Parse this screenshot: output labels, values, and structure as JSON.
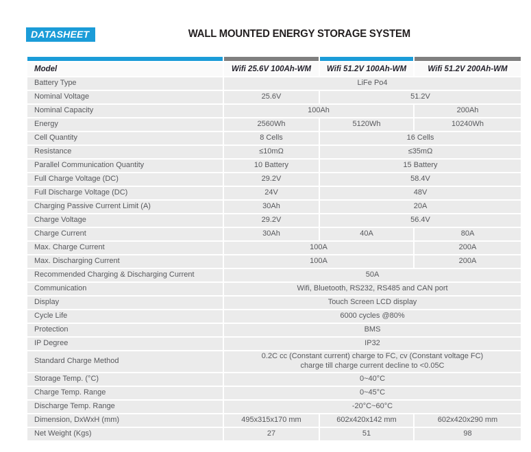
{
  "header": {
    "badge": "DATASHEET",
    "title": "WALL MOUNTED ENERGY STORAGE SYSTEM"
  },
  "colors": {
    "accent_blue": "#1b9cd8",
    "accent_gray": "#7f7f7f",
    "row_background": "#ebebeb",
    "header_text": "#26242e",
    "body_text": "#57585c"
  },
  "table": {
    "columns": [
      "Model",
      "Wifi 25.6V 100Ah-WM",
      "Wifi 51.2V 100Ah-WM",
      "Wifi 51.2V 200Ah-WM"
    ],
    "stripe_colors": [
      "#1b9cd8",
      "#7f7f7f",
      "#1b9cd8",
      "#7f7f7f"
    ],
    "rows": [
      {
        "label": "Battery Type",
        "cells": [
          {
            "text": "LiFe Po4",
            "span": 3
          }
        ]
      },
      {
        "label": "Nominal Voltage",
        "cells": [
          {
            "text": "25.6V",
            "span": 1
          },
          {
            "text": "51.2V",
            "span": 2
          }
        ]
      },
      {
        "label": "Nominal Capacity",
        "cells": [
          {
            "text": "100Ah",
            "span": 2
          },
          {
            "text": "200Ah",
            "span": 1
          }
        ]
      },
      {
        "label": "Energy",
        "cells": [
          {
            "text": "2560Wh",
            "span": 1
          },
          {
            "text": "5120Wh",
            "span": 1
          },
          {
            "text": "10240Wh",
            "span": 1
          }
        ]
      },
      {
        "label": "Cell Quantity",
        "cells": [
          {
            "text": "8 Cells",
            "span": 1
          },
          {
            "text": "16 Cells",
            "span": 2
          }
        ]
      },
      {
        "label": "Resistance",
        "cells": [
          {
            "text": "≤10mΩ",
            "span": 1
          },
          {
            "text": "≤35mΩ",
            "span": 2
          }
        ]
      },
      {
        "label": "Parallel Communication Quantity",
        "cells": [
          {
            "text": "10 Battery",
            "span": 1
          },
          {
            "text": "15 Battery",
            "span": 2
          }
        ]
      },
      {
        "label": "Full Charge Voltage (DC)",
        "cells": [
          {
            "text": "29.2V",
            "span": 1
          },
          {
            "text": "58.4V",
            "span": 2
          }
        ]
      },
      {
        "label": "Full Discharge Voltage (DC)",
        "cells": [
          {
            "text": "24V",
            "span": 1
          },
          {
            "text": "48V",
            "span": 2
          }
        ]
      },
      {
        "label": "Charging Passive Current Limit (A)",
        "cells": [
          {
            "text": "30Ah",
            "span": 1
          },
          {
            "text": "20A",
            "span": 2
          }
        ]
      },
      {
        "label": "Charge Voltage",
        "cells": [
          {
            "text": "29.2V",
            "span": 1
          },
          {
            "text": "56.4V",
            "span": 2
          }
        ]
      },
      {
        "label": "Charge Current",
        "cells": [
          {
            "text": "30Ah",
            "span": 1
          },
          {
            "text": "40A",
            "span": 1
          },
          {
            "text": "80A",
            "span": 1
          }
        ]
      },
      {
        "label": "Max. Charge Current",
        "cells": [
          {
            "text": "100A",
            "span": 2
          },
          {
            "text": "200A",
            "span": 1
          }
        ]
      },
      {
        "label": "Max. Discharging Current",
        "cells": [
          {
            "text": "100A",
            "span": 2
          },
          {
            "text": "200A",
            "span": 1
          }
        ]
      },
      {
        "label": "Recommended Charging & Discharging Current",
        "cells": [
          {
            "text": "50A",
            "span": 3
          }
        ]
      },
      {
        "label": "Communication",
        "cells": [
          {
            "text": "Wifi, Bluetooth, RS232, RS485 and CAN port",
            "span": 3
          }
        ]
      },
      {
        "label": "Display",
        "cells": [
          {
            "text": "Touch Screen LCD display",
            "span": 3
          }
        ]
      },
      {
        "label": "Cycle Life",
        "cells": [
          {
            "text": "6000 cycles @80%",
            "span": 3
          }
        ]
      },
      {
        "label": "Protection",
        "cells": [
          {
            "text": "BMS",
            "span": 3
          }
        ]
      },
      {
        "label": "IP Degree",
        "cells": [
          {
            "text": "IP32",
            "span": 3
          }
        ]
      },
      {
        "label": "Standard Charge Method",
        "cells": [
          {
            "text": "0.2C cc (Constant current) charge to FC, cv (Constant voltage FC)\ncharge till charge current decline to <0.05C",
            "span": 3
          }
        ]
      },
      {
        "label": "Storage Temp. (°C)",
        "cells": [
          {
            "text": "0~40°C",
            "span": 3
          }
        ]
      },
      {
        "label": "Charge Temp. Range",
        "cells": [
          {
            "text": "0~45°C",
            "span": 3
          }
        ]
      },
      {
        "label": "Discharge Temp. Range",
        "cells": [
          {
            "text": "-20°C~60°C",
            "span": 3
          }
        ]
      },
      {
        "label": "Dimension, DxWxH (mm)",
        "cells": [
          {
            "text": "495x315x170 mm",
            "span": 1
          },
          {
            "text": "602x420x142 mm",
            "span": 1
          },
          {
            "text": "602x420x290 mm",
            "span": 1
          }
        ]
      },
      {
        "label": "Net Weight (Kgs)",
        "cells": [
          {
            "text": "27",
            "span": 1
          },
          {
            "text": "51",
            "span": 1
          },
          {
            "text": "98",
            "span": 1
          }
        ]
      }
    ]
  }
}
